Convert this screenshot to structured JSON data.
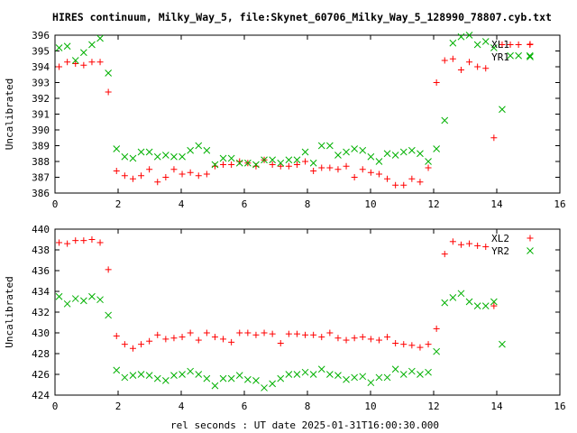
{
  "title": "HIRES continuum, Milky_Way_5, file:Skynet_60706_Milky_Way_5_128990_78807.cyb.txt",
  "xlabel": "rel seconds : UT date 2025-01-31T16:00:30.000",
  "colors": {
    "red": "#ff0000",
    "green": "#00b000",
    "axis": "#000000",
    "grid": "#a0a0a0"
  },
  "chart_data": [
    {
      "type": "scatter",
      "ylabel": "Uncalibrated",
      "xlim": [
        0,
        16
      ],
      "ylim": [
        386,
        396
      ],
      "xticks": [
        0,
        2,
        4,
        6,
        8,
        10,
        12,
        14,
        16
      ],
      "yticks": [
        386,
        387,
        388,
        389,
        390,
        391,
        392,
        393,
        394,
        395,
        396
      ],
      "legend_position": "top-right",
      "series": [
        {
          "name": "XL1",
          "color": "#ff0000",
          "marker": "plus",
          "x": [
            0.13,
            0.39,
            0.65,
            0.91,
            1.17,
            1.43,
            1.69,
            1.95,
            2.21,
            2.47,
            2.73,
            2.99,
            3.25,
            3.51,
            3.77,
            4.03,
            4.29,
            4.55,
            4.81,
            5.07,
            5.33,
            5.59,
            5.85,
            6.11,
            6.37,
            6.63,
            6.89,
            7.15,
            7.41,
            7.67,
            7.93,
            8.19,
            8.45,
            8.71,
            8.97,
            9.23,
            9.49,
            9.75,
            10.01,
            10.27,
            10.53,
            10.79,
            11.05,
            11.31,
            11.57,
            11.83,
            12.09,
            12.35,
            12.61,
            12.87,
            13.13,
            13.39,
            13.65,
            13.91,
            14.17,
            14.43,
            14.69,
            15.05
          ],
          "y": [
            394.0,
            394.3,
            394.2,
            394.1,
            394.3,
            394.3,
            392.4,
            387.4,
            387.1,
            386.9,
            387.1,
            387.5,
            386.7,
            387.0,
            387.5,
            387.2,
            387.3,
            387.1,
            387.2,
            387.7,
            387.8,
            387.8,
            388.0,
            387.9,
            387.7,
            388.1,
            387.8,
            387.7,
            387.7,
            387.8,
            388.0,
            387.4,
            387.6,
            387.6,
            387.5,
            387.7,
            387.0,
            387.5,
            387.3,
            387.2,
            386.9,
            386.5,
            386.5,
            386.9,
            386.7,
            387.6,
            393.0,
            394.4,
            394.5,
            393.8,
            394.3,
            394.0,
            393.9,
            389.5,
            395.4,
            395.4,
            395.4,
            395.4
          ],
          "valid_count": 58
        },
        {
          "name": "YR1",
          "color": "#00b000",
          "marker": "cross",
          "x": [
            0.13,
            0.39,
            0.65,
            0.91,
            1.17,
            1.43,
            1.69,
            1.95,
            2.21,
            2.47,
            2.73,
            2.99,
            3.25,
            3.51,
            3.77,
            4.03,
            4.29,
            4.55,
            4.81,
            5.07,
            5.33,
            5.59,
            5.85,
            6.11,
            6.37,
            6.63,
            6.89,
            7.15,
            7.41,
            7.67,
            7.93,
            8.19,
            8.45,
            8.71,
            8.97,
            9.23,
            9.49,
            9.75,
            10.01,
            10.27,
            10.53,
            10.79,
            11.05,
            11.31,
            11.57,
            11.83,
            12.09,
            12.35,
            12.61,
            12.87,
            13.13,
            13.39,
            13.65,
            13.91,
            14.17,
            14.43,
            14.69,
            15.05
          ],
          "y": [
            395.2,
            395.3,
            394.4,
            394.9,
            395.4,
            395.8,
            393.6,
            388.8,
            388.3,
            388.2,
            388.6,
            388.6,
            388.3,
            388.4,
            388.3,
            388.3,
            388.7,
            389.0,
            388.7,
            387.8,
            388.2,
            388.2,
            387.9,
            387.9,
            387.8,
            388.1,
            388.1,
            387.9,
            388.1,
            388.1,
            388.6,
            387.9,
            389.0,
            389.0,
            388.4,
            388.6,
            388.8,
            388.7,
            388.3,
            388.0,
            388.5,
            388.4,
            388.6,
            388.7,
            388.5,
            388.0,
            388.8,
            390.6,
            395.5,
            395.9,
            396.0,
            395.4,
            395.6,
            395.2,
            391.3,
            394.7,
            394.7,
            394.7
          ],
          "valid_count": 58
        }
      ]
    },
    {
      "type": "scatter",
      "ylabel": "Uncalibrated",
      "xlim": [
        0,
        16
      ],
      "ylim": [
        424,
        440
      ],
      "xticks": [
        0,
        2,
        4,
        6,
        8,
        10,
        12,
        14,
        16
      ],
      "yticks": [
        424,
        426,
        428,
        430,
        432,
        434,
        436,
        438,
        440
      ],
      "legend_position": "top-right",
      "series": [
        {
          "name": "XL2",
          "color": "#ff0000",
          "marker": "plus",
          "x": [
            0.13,
            0.39,
            0.65,
            0.91,
            1.17,
            1.43,
            1.69,
            1.95,
            2.21,
            2.47,
            2.73,
            2.99,
            3.25,
            3.51,
            3.77,
            4.03,
            4.29,
            4.55,
            4.81,
            5.07,
            5.33,
            5.59,
            5.85,
            6.11,
            6.37,
            6.63,
            6.89,
            7.15,
            7.41,
            7.67,
            7.93,
            8.19,
            8.45,
            8.71,
            8.97,
            9.23,
            9.49,
            9.75,
            10.01,
            10.27,
            10.53,
            10.79,
            11.05,
            11.31,
            11.57,
            11.83,
            12.09,
            12.35,
            12.61,
            12.87,
            13.13,
            13.39,
            13.65,
            13.91,
            14.17,
            14.43,
            14.69,
            15.05
          ],
          "y": [
            438.7,
            438.6,
            438.9,
            438.9,
            439.0,
            438.7,
            436.1,
            429.7,
            428.9,
            428.5,
            428.9,
            429.2,
            429.8,
            429.4,
            429.5,
            429.6,
            430.0,
            429.3,
            430.0,
            429.6,
            429.4,
            429.1,
            430.0,
            430.0,
            429.8,
            430.0,
            429.9,
            429.0,
            429.9,
            429.9,
            429.8,
            429.8,
            429.6,
            430.0,
            429.5,
            429.3,
            429.5,
            429.6,
            429.4,
            429.3,
            429.6,
            429.0,
            428.9,
            428.8,
            428.6,
            428.9,
            430.4,
            437.6,
            438.8,
            438.5,
            438.6,
            438.4,
            438.3,
            432.6,
            439.1,
            439.1,
            439.1,
            439.1
          ],
          "valid_count": 54
        },
        {
          "name": "YR2",
          "color": "#00b000",
          "marker": "cross",
          "x": [
            0.13,
            0.39,
            0.65,
            0.91,
            1.17,
            1.43,
            1.69,
            1.95,
            2.21,
            2.47,
            2.73,
            2.99,
            3.25,
            3.51,
            3.77,
            4.03,
            4.29,
            4.55,
            4.81,
            5.07,
            5.33,
            5.59,
            5.85,
            6.11,
            6.37,
            6.63,
            6.89,
            7.15,
            7.41,
            7.67,
            7.93,
            8.19,
            8.45,
            8.71,
            8.97,
            9.23,
            9.49,
            9.75,
            10.01,
            10.27,
            10.53,
            10.79,
            11.05,
            11.31,
            11.57,
            11.83,
            12.09,
            12.35,
            12.61,
            12.87,
            13.13,
            13.39,
            13.65,
            13.91,
            14.17,
            14.43,
            14.69,
            15.05
          ],
          "y": [
            433.5,
            432.8,
            433.3,
            433.1,
            433.5,
            433.2,
            431.7,
            426.4,
            425.7,
            425.9,
            426.0,
            425.9,
            425.6,
            425.4,
            425.9,
            426.0,
            426.3,
            426.0,
            425.6,
            424.9,
            425.6,
            425.6,
            425.9,
            425.5,
            425.4,
            424.7,
            425.1,
            425.6,
            426.0,
            426.0,
            426.2,
            426.0,
            426.5,
            426.0,
            425.9,
            425.5,
            425.7,
            425.8,
            425.2,
            425.7,
            425.7,
            426.5,
            426.0,
            426.3,
            426.0,
            426.2,
            428.2,
            432.9,
            433.4,
            433.8,
            433.0,
            432.6,
            432.6,
            433.0,
            428.9,
            437.9,
            437.9,
            437.9
          ],
          "valid_count": 55
        }
      ]
    }
  ]
}
